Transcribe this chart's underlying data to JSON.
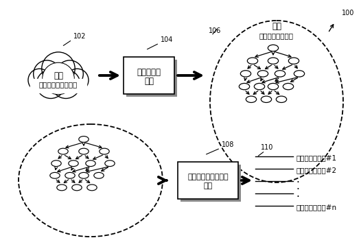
{
  "bg_color": "#ffffff",
  "label_102": "102",
  "label_104": "104",
  "label_106": "106",
  "label_108": "108",
  "label_110": "110",
  "label_100": "100",
  "cloud_text1": "句子",
  "cloud_text2": "（例如，查询日志）",
  "box1_text1": "分类编码器",
  "box1_text2": "组件",
  "box2_text1": "本地语言模型解码器",
  "box2_text2": "组件",
  "ellipse_title": "分类",
  "ellipse_subtitle": "（例如，树结构）",
  "model_label1": "本地化语言模型#1",
  "model_label2": "本地化语言模型#2",
  "model_label3": "本地化语言模型#n",
  "font_size_main": 8.5,
  "font_size_label": 7,
  "font_size_small": 7.5
}
